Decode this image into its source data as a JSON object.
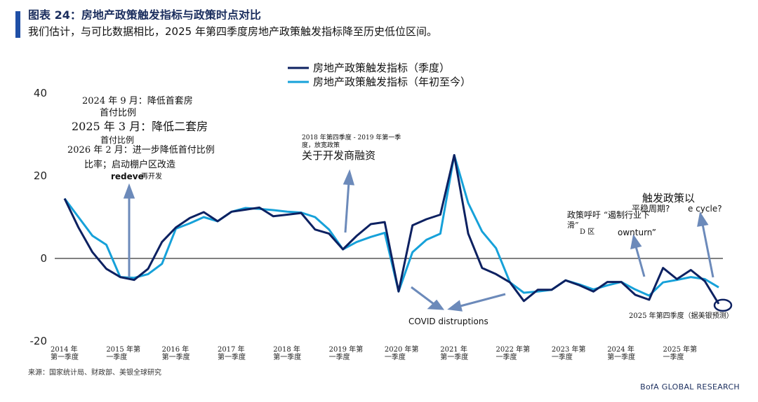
{
  "header": {
    "title": "图表 24：房地产政策触发指标与政策时点对比",
    "subtitle": "我们估计，与可比数据相比，2025 年第四季度房地产政策触发指标降至历史低位区间。"
  },
  "footer": {
    "source": "来源：国家统计局、财政部、美银全球研究",
    "brand": "BofA GLOBAL RESEARCH"
  },
  "colors": {
    "series_quarterly": "#0d2161",
    "series_ytd": "#16a1d9",
    "arrow": "#6c8aba",
    "accent": "#1f4fa6"
  },
  "chart_data": {
    "type": "line",
    "title": "",
    "xlabel": "",
    "ylabel": "",
    "ylim": [
      -20,
      40
    ],
    "yticks": [
      "40",
      "20",
      "0",
      "-20"
    ],
    "x_tick_labels": [
      {
        "index": 0,
        "line1": "2014 年",
        "line2": "第一季度"
      },
      {
        "index": 4,
        "line1": "2015 年第",
        "line2": "一季度"
      },
      {
        "index": 8,
        "line1": "2016 年",
        "line2": "第一季度"
      },
      {
        "index": 12,
        "line1": "2017 年",
        "line2": "第一季度"
      },
      {
        "index": 16,
        "line1": "2018 年",
        "line2": "第一季度"
      },
      {
        "index": 20,
        "line1": "2019 年第",
        "line2": "一季度"
      },
      {
        "index": 24,
        "line1": "2020 年第",
        "line2": "一季度"
      },
      {
        "index": 28,
        "line1": "2021 年",
        "line2": "第一季度"
      },
      {
        "index": 32,
        "line1": "2022 年第",
        "line2": "一季度"
      },
      {
        "index": 36,
        "line1": "2023 年第",
        "line2": "一季度"
      },
      {
        "index": 40,
        "line1": "2024 年",
        "line2": "第一季度"
      },
      {
        "index": 44,
        "line1": "2025 年第",
        "line2": "一季度"
      }
    ],
    "x": [
      "2014Q1",
      "2014Q2",
      "2014Q3",
      "2014Q4",
      "2015Q1",
      "2015Q2",
      "2015Q3",
      "2015Q4",
      "2016Q1",
      "2016Q2",
      "2016Q3",
      "2016Q4",
      "2017Q1",
      "2017Q2",
      "2017Q3",
      "2017Q4",
      "2018Q1",
      "2018Q2",
      "2018Q3",
      "2018Q4",
      "2019Q1",
      "2019Q2",
      "2019Q3",
      "2019Q4",
      "2020Q1",
      "2020Q2",
      "2020Q3",
      "2020Q4",
      "2021Q1",
      "2021Q2",
      "2021Q3",
      "2021Q4",
      "2022Q1",
      "2022Q2",
      "2022Q3",
      "2022Q4",
      "2023Q1",
      "2023Q2",
      "2023Q3",
      "2023Q4",
      "2024Q1",
      "2024Q2",
      "2024Q3",
      "2024Q4",
      "2025Q1",
      "2025Q2",
      "2025Q3",
      "2025Q4"
    ],
    "series": [
      {
        "name": "房地产政策触发指标（季度）",
        "values": [
          14.5,
          7.5,
          1.5,
          -2.5,
          -4.5,
          -5.2,
          -2.5,
          4,
          7.5,
          9.8,
          11.2,
          9,
          11.3,
          11.8,
          12.3,
          10.2,
          10.6,
          11,
          7,
          6,
          2.2,
          5.5,
          8.3,
          8.8,
          -8,
          8,
          9.5,
          10.6,
          25,
          6,
          -2.3,
          -3.8,
          -5.8,
          -10.3,
          -7.6,
          -7.6,
          -5.3,
          -6.5,
          -8,
          -5.7,
          -5.7,
          -8.8,
          -10,
          -2.3,
          -5,
          -2.8,
          -5.5,
          -11
        ]
      },
      {
        "name": "房地产政策触发指标（年初至今）",
        "values": [
          14.5,
          10,
          5.5,
          3.3,
          -4.5,
          -4.7,
          -3.8,
          -1.3,
          7.2,
          8.5,
          10,
          9,
          11.3,
          12.2,
          12,
          11.7,
          11.3,
          11.1,
          10,
          7,
          2.2,
          4,
          5.2,
          6.2,
          -8,
          1.5,
          4.5,
          6,
          25,
          13.4,
          6.5,
          2.5,
          -5.8,
          -8.3,
          -8,
          -7.6,
          -5.3,
          -6.3,
          -7.5,
          -6.5,
          -5.7,
          -7.5,
          -9,
          -5.8,
          -5.2,
          -4.5,
          -5,
          -7
        ]
      }
    ],
    "legend_position": "top-center",
    "grid": false,
    "annotations": {
      "a1_l1": "2024 年 9 月：降低首套房",
      "a1_l2": "首付比例",
      "a2_l1": "2025 年 3 月：降低二套房",
      "a2_l2": "首付比例",
      "a3_l1": "2026 年 2 月：进一步降低首付比例",
      "a3_l2": "比率；启动棚户区改造",
      "a3_l3a": "redeve",
      "a3_l3b": "再开发",
      "b_l1": "2018 年第四季度 - 2019 年第一季",
      "b_l2": "度，放宽政策",
      "b_l3": "关于开发商融资",
      "covid": "COVID distruptions",
      "c_main": "触发政策以",
      "c_sub1": "平稳周期?",
      "c_ecycle": "e cycle?",
      "c_call": "政策呼吁 “遏制行业下",
      "c_hua": "滑”",
      "c_dq": "D 区",
      "c_downturn": "ownturn”",
      "last_est": "2025 年第四季度（据美银预测）"
    }
  }
}
